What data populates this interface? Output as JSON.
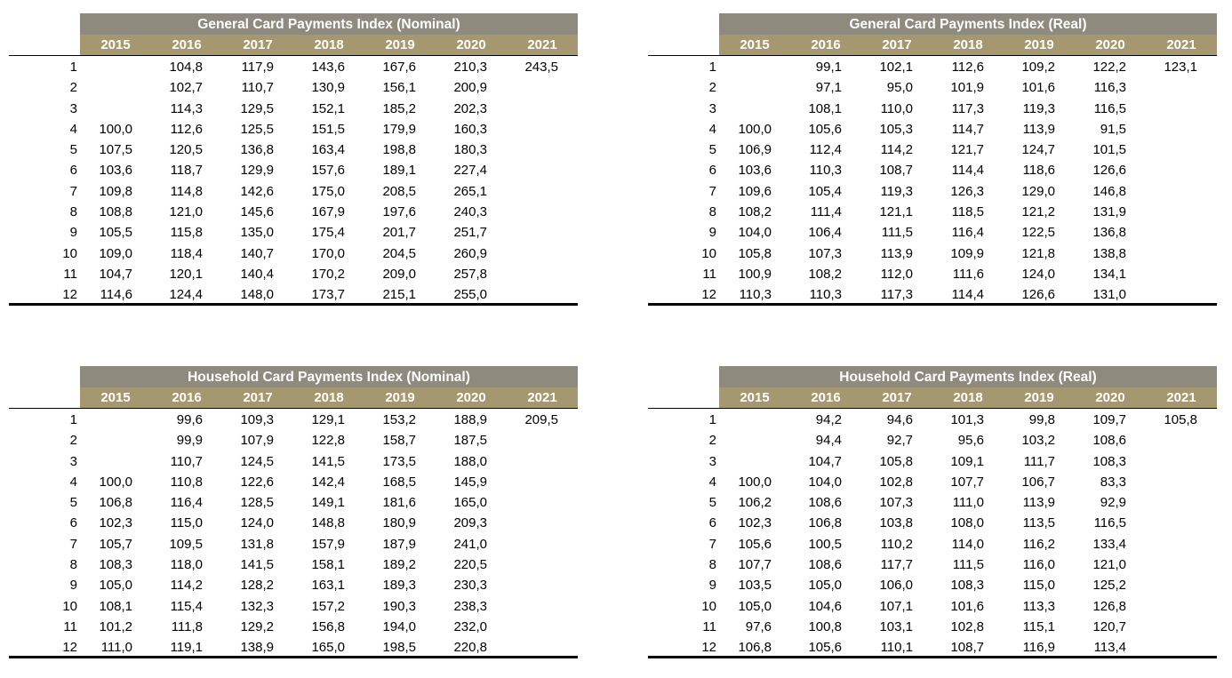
{
  "years": [
    "2015",
    "2016",
    "2017",
    "2018",
    "2019",
    "2020",
    "2021"
  ],
  "months": [
    "1",
    "2",
    "3",
    "4",
    "5",
    "6",
    "7",
    "8",
    "9",
    "10",
    "11",
    "12"
  ],
  "tables": [
    {
      "id": "general-nominal",
      "title": "General Card Payments Index (Nominal)",
      "rows": [
        [
          "",
          "104,8",
          "117,9",
          "143,6",
          "167,6",
          "210,3",
          "243,5"
        ],
        [
          "",
          "102,7",
          "110,7",
          "130,9",
          "156,1",
          "200,9",
          ""
        ],
        [
          "",
          "114,3",
          "129,5",
          "152,1",
          "185,2",
          "202,3",
          ""
        ],
        [
          "100,0",
          "112,6",
          "125,5",
          "151,5",
          "179,9",
          "160,3",
          ""
        ],
        [
          "107,5",
          "120,5",
          "136,8",
          "163,4",
          "198,8",
          "180,3",
          ""
        ],
        [
          "103,6",
          "118,7",
          "129,9",
          "157,6",
          "189,1",
          "227,4",
          ""
        ],
        [
          "109,8",
          "114,8",
          "142,6",
          "175,0",
          "208,5",
          "265,1",
          ""
        ],
        [
          "108,8",
          "121,0",
          "145,6",
          "167,9",
          "197,6",
          "240,3",
          ""
        ],
        [
          "105,5",
          "115,8",
          "135,0",
          "175,4",
          "201,7",
          "251,7",
          ""
        ],
        [
          "109,0",
          "118,4",
          "140,7",
          "170,0",
          "204,5",
          "260,9",
          ""
        ],
        [
          "104,7",
          "120,1",
          "140,4",
          "170,2",
          "209,0",
          "257,8",
          ""
        ],
        [
          "114,6",
          "124,4",
          "148,0",
          "173,7",
          "215,1",
          "255,0",
          ""
        ]
      ]
    },
    {
      "id": "general-real",
      "title": "General Card Payments Index (Real)",
      "rows": [
        [
          "",
          "99,1",
          "102,1",
          "112,6",
          "109,2",
          "122,2",
          "123,1"
        ],
        [
          "",
          "97,1",
          "95,0",
          "101,9",
          "101,6",
          "116,3",
          ""
        ],
        [
          "",
          "108,1",
          "110,0",
          "117,3",
          "119,3",
          "116,5",
          ""
        ],
        [
          "100,0",
          "105,6",
          "105,3",
          "114,7",
          "113,9",
          "91,5",
          ""
        ],
        [
          "106,9",
          "112,4",
          "114,2",
          "121,7",
          "124,7",
          "101,5",
          ""
        ],
        [
          "103,6",
          "110,3",
          "108,7",
          "114,4",
          "118,6",
          "126,6",
          ""
        ],
        [
          "109,6",
          "105,4",
          "119,3",
          "126,3",
          "129,0",
          "146,8",
          ""
        ],
        [
          "108,2",
          "111,4",
          "121,1",
          "118,5",
          "121,2",
          "131,9",
          ""
        ],
        [
          "104,0",
          "106,4",
          "111,5",
          "116,4",
          "122,5",
          "136,8",
          ""
        ],
        [
          "105,8",
          "107,3",
          "113,9",
          "109,9",
          "121,8",
          "138,8",
          ""
        ],
        [
          "100,9",
          "108,2",
          "112,0",
          "111,6",
          "124,0",
          "134,1",
          ""
        ],
        [
          "110,3",
          "110,3",
          "117,3",
          "114,4",
          "126,6",
          "131,0",
          ""
        ]
      ]
    },
    {
      "id": "household-nominal",
      "title": "Household Card Payments Index (Nominal)",
      "rows": [
        [
          "",
          "99,6",
          "109,3",
          "129,1",
          "153,2",
          "188,9",
          "209,5"
        ],
        [
          "",
          "99,9",
          "107,9",
          "122,8",
          "158,7",
          "187,5",
          ""
        ],
        [
          "",
          "110,7",
          "124,5",
          "141,5",
          "173,5",
          "188,0",
          ""
        ],
        [
          "100,0",
          "110,8",
          "122,6",
          "142,4",
          "168,5",
          "145,9",
          ""
        ],
        [
          "106,8",
          "116,4",
          "128,5",
          "149,1",
          "181,6",
          "165,0",
          ""
        ],
        [
          "102,3",
          "115,0",
          "124,0",
          "148,8",
          "180,9",
          "209,3",
          ""
        ],
        [
          "105,7",
          "109,5",
          "131,8",
          "157,9",
          "187,9",
          "241,0",
          ""
        ],
        [
          "108,3",
          "118,0",
          "141,5",
          "158,1",
          "189,2",
          "220,5",
          ""
        ],
        [
          "105,0",
          "114,2",
          "128,2",
          "163,1",
          "189,3",
          "230,3",
          ""
        ],
        [
          "108,1",
          "115,4",
          "132,3",
          "157,2",
          "190,3",
          "238,3",
          ""
        ],
        [
          "101,2",
          "111,8",
          "129,2",
          "156,8",
          "194,0",
          "232,0",
          ""
        ],
        [
          "111,0",
          "119,1",
          "138,9",
          "165,0",
          "198,5",
          "220,8",
          ""
        ]
      ]
    },
    {
      "id": "household-real",
      "title": "Household Card Payments Index (Real)",
      "rows": [
        [
          "",
          "94,2",
          "94,6",
          "101,3",
          "99,8",
          "109,7",
          "105,8"
        ],
        [
          "",
          "94,4",
          "92,7",
          "95,6",
          "103,2",
          "108,6",
          ""
        ],
        [
          "",
          "104,7",
          "105,8",
          "109,1",
          "111,7",
          "108,3",
          ""
        ],
        [
          "100,0",
          "104,0",
          "102,8",
          "107,7",
          "106,7",
          "83,3",
          ""
        ],
        [
          "106,2",
          "108,6",
          "107,3",
          "111,0",
          "113,9",
          "92,9",
          ""
        ],
        [
          "102,3",
          "106,8",
          "103,8",
          "108,0",
          "113,5",
          "116,5",
          ""
        ],
        [
          "105,6",
          "100,5",
          "110,2",
          "114,0",
          "116,2",
          "133,4",
          ""
        ],
        [
          "107,7",
          "108,6",
          "117,7",
          "111,5",
          "116,0",
          "121,0",
          ""
        ],
        [
          "103,5",
          "105,0",
          "106,0",
          "108,3",
          "115,0",
          "125,2",
          ""
        ],
        [
          "105,0",
          "104,6",
          "107,1",
          "101,6",
          "113,3",
          "126,8",
          ""
        ],
        [
          "97,6",
          "100,8",
          "103,1",
          "102,8",
          "115,1",
          "120,7",
          ""
        ],
        [
          "106,8",
          "105,6",
          "110,1",
          "108,7",
          "116,9",
          "113,4",
          ""
        ]
      ]
    }
  ]
}
